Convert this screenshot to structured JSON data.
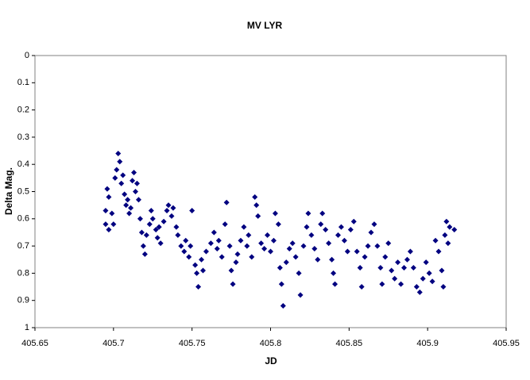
{
  "chart_data": {
    "type": "scatter",
    "title": "MV LYR",
    "x_label": "JD",
    "y_label": "Delta Mag.",
    "xlim": [
      405.65,
      405.95
    ],
    "xticks": [
      405.65,
      405.7,
      405.75,
      405.8,
      405.85,
      405.9,
      405.95
    ],
    "ylim": [
      0,
      1
    ],
    "yticks": [
      0,
      0.1,
      0.2,
      0.3,
      0.4,
      0.5,
      0.6,
      0.7,
      0.8,
      0.9,
      1
    ],
    "y_reversed": true,
    "grid": false,
    "series": [
      {
        "color": "#000080",
        "marker": "diamond",
        "x": [
          405.695,
          405.695,
          405.696,
          405.697,
          405.697,
          405.699,
          405.7,
          405.701,
          405.702,
          405.703,
          405.704,
          405.705,
          405.706,
          405.707,
          405.708,
          405.709,
          405.71,
          405.711,
          405.712,
          405.713,
          405.714,
          405.715,
          405.716,
          405.717,
          405.718,
          405.719,
          405.72,
          405.721,
          405.723,
          405.724,
          405.725,
          405.727,
          405.728,
          405.729,
          405.73,
          405.732,
          405.734,
          405.735,
          405.737,
          405.738,
          405.74,
          405.741,
          405.743,
          405.745,
          405.746,
          405.748,
          405.749,
          405.75,
          405.752,
          405.753,
          405.754,
          405.756,
          405.757,
          405.759,
          405.762,
          405.764,
          405.766,
          405.767,
          405.769,
          405.771,
          405.772,
          405.774,
          405.775,
          405.776,
          405.778,
          405.779,
          405.781,
          405.783,
          405.785,
          405.786,
          405.788,
          405.79,
          405.791,
          405.792,
          405.794,
          405.796,
          405.798,
          405.8,
          405.802,
          405.803,
          405.805,
          405.806,
          405.807,
          405.808,
          405.81,
          405.812,
          405.814,
          405.816,
          405.818,
          405.819,
          405.821,
          405.823,
          405.824,
          405.826,
          405.828,
          405.83,
          405.832,
          405.833,
          405.835,
          405.837,
          405.839,
          405.84,
          405.841,
          405.843,
          405.845,
          405.847,
          405.849,
          405.851,
          405.853,
          405.855,
          405.857,
          405.858,
          405.86,
          405.862,
          405.864,
          405.866,
          405.868,
          405.87,
          405.871,
          405.873,
          405.875,
          405.877,
          405.879,
          405.881,
          405.883,
          405.885,
          405.887,
          405.889,
          405.891,
          405.893,
          405.895,
          405.897,
          405.899,
          405.901,
          405.903,
          405.905,
          405.907,
          405.909,
          405.91,
          405.911,
          405.912,
          405.913,
          405.914,
          405.917
        ],
        "values": [
          0.62,
          0.57,
          0.49,
          0.52,
          0.64,
          0.58,
          0.62,
          0.45,
          0.42,
          0.36,
          0.39,
          0.47,
          0.44,
          0.51,
          0.55,
          0.53,
          0.58,
          0.56,
          0.46,
          0.43,
          0.5,
          0.47,
          0.53,
          0.6,
          0.65,
          0.7,
          0.73,
          0.66,
          0.62,
          0.57,
          0.6,
          0.64,
          0.67,
          0.63,
          0.69,
          0.61,
          0.57,
          0.55,
          0.59,
          0.56,
          0.63,
          0.66,
          0.7,
          0.72,
          0.68,
          0.74,
          0.7,
          0.57,
          0.77,
          0.8,
          0.85,
          0.75,
          0.79,
          0.72,
          0.69,
          0.65,
          0.71,
          0.68,
          0.74,
          0.62,
          0.54,
          0.7,
          0.79,
          0.84,
          0.76,
          0.73,
          0.68,
          0.63,
          0.7,
          0.66,
          0.74,
          0.52,
          0.55,
          0.59,
          0.69,
          0.71,
          0.66,
          0.72,
          0.68,
          0.58,
          0.62,
          0.78,
          0.84,
          0.92,
          0.76,
          0.71,
          0.69,
          0.74,
          0.8,
          0.88,
          0.7,
          0.63,
          0.58,
          0.66,
          0.71,
          0.75,
          0.62,
          0.58,
          0.64,
          0.69,
          0.75,
          0.8,
          0.84,
          0.66,
          0.63,
          0.68,
          0.72,
          0.64,
          0.61,
          0.72,
          0.78,
          0.85,
          0.74,
          0.7,
          0.65,
          0.62,
          0.7,
          0.78,
          0.84,
          0.74,
          0.69,
          0.79,
          0.82,
          0.76,
          0.84,
          0.78,
          0.75,
          0.72,
          0.78,
          0.85,
          0.87,
          0.82,
          0.76,
          0.8,
          0.83,
          0.68,
          0.72,
          0.79,
          0.85,
          0.66,
          0.61,
          0.69,
          0.63,
          0.64
        ]
      }
    ]
  }
}
